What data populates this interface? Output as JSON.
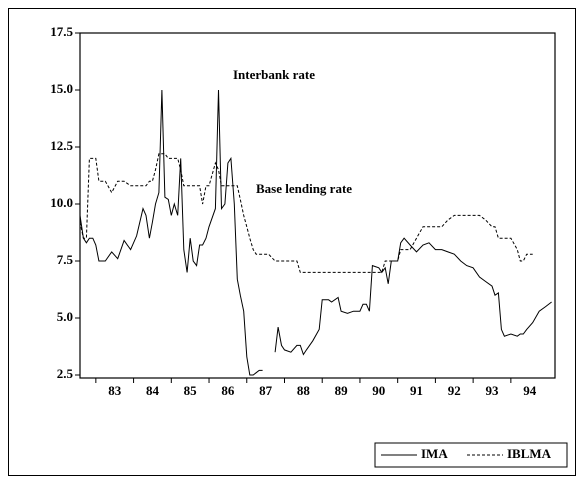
{
  "chart_data": {
    "type": "line",
    "annotations": [
      "Interbank rate",
      "Base lending rate"
    ],
    "x": [
      1982.58,
      1982.67,
      1982.75,
      1982.83,
      1982.92,
      1983.0,
      1983.08,
      1983.25,
      1983.42,
      1983.58,
      1983.75,
      1983.92,
      1984.08,
      1984.25,
      1984.33,
      1984.42,
      1984.5,
      1984.58,
      1984.67,
      1984.75,
      1984.83,
      1984.92,
      1985.0,
      1985.08,
      1985.17,
      1985.25,
      1985.33,
      1985.42,
      1985.5,
      1985.58,
      1985.67,
      1985.75,
      1985.83,
      1985.92,
      1986.0,
      1986.17,
      1986.25,
      1986.33,
      1986.42,
      1986.5,
      1986.58,
      1986.67,
      1986.75,
      1986.83,
      1986.92,
      1987.0,
      1987.08,
      1987.17,
      1987.25,
      1987.33,
      1987.42,
      1987.58,
      1987.75,
      1987.83,
      1987.92,
      1988.0,
      1988.17,
      1988.33,
      1988.42,
      1988.5,
      1988.58,
      1988.75,
      1988.92,
      1989.0,
      1989.17,
      1989.25,
      1989.42,
      1989.5,
      1989.67,
      1989.83,
      1990.0,
      1990.08,
      1990.17,
      1990.25,
      1990.33,
      1990.5,
      1990.58,
      1990.67,
      1990.75,
      1990.83,
      1990.92,
      1991.0,
      1991.08,
      1991.17,
      1991.33,
      1991.5,
      1991.67,
      1991.83,
      1992.0,
      1992.17,
      1992.33,
      1992.5,
      1992.67,
      1992.83,
      1993.0,
      1993.17,
      1993.33,
      1993.5,
      1993.58,
      1993.67,
      1993.75,
      1993.83,
      1994.0,
      1994.17,
      1994.25,
      1994.33,
      1994.42,
      1994.58,
      1994.75,
      1994.92,
      1995.08
    ],
    "series": [
      {
        "name": "IMA",
        "color": "#000000",
        "dash": "solid",
        "values": [
          9.5,
          8.5,
          8.3,
          8.5,
          8.5,
          8.2,
          7.5,
          7.5,
          7.9,
          7.6,
          8.4,
          8.0,
          8.6,
          9.8,
          9.5,
          8.5,
          9.2,
          10.0,
          10.5,
          15.0,
          10.3,
          10.2,
          9.5,
          10.0,
          9.5,
          12.0,
          8.0,
          7.0,
          8.5,
          7.5,
          7.3,
          8.2,
          8.2,
          8.5,
          9.0,
          9.8,
          15.0,
          9.8,
          10.0,
          11.8,
          12.0,
          10.0,
          6.7,
          6.0,
          5.3,
          3.3,
          2.5,
          2.5,
          2.6,
          2.7,
          2.7,
          null,
          3.5,
          4.6,
          3.8,
          3.6,
          3.5,
          3.8,
          3.8,
          3.4,
          3.6,
          4.0,
          4.5,
          5.8,
          5.8,
          5.7,
          5.9,
          5.3,
          5.2,
          5.3,
          5.3,
          5.6,
          5.6,
          5.3,
          7.3,
          7.2,
          7.0,
          7.2,
          6.5,
          7.5,
          7.5,
          7.5,
          8.3,
          8.5,
          8.2,
          7.9,
          8.2,
          8.3,
          8.0,
          8.0,
          7.9,
          7.8,
          7.5,
          7.3,
          7.2,
          6.8,
          6.6,
          6.4,
          6.0,
          6.1,
          4.5,
          4.2,
          4.3,
          4.2,
          4.3,
          4.3,
          4.5,
          4.8,
          5.3,
          5.5,
          5.7
        ]
      },
      {
        "name": "IBLMA",
        "color": "#000000",
        "dash": "dashed",
        "values": [
          9.2,
          8.5,
          8.5,
          12.0,
          12.0,
          12.0,
          11.0,
          11.0,
          10.5,
          11.0,
          11.0,
          10.8,
          10.8,
          10.8,
          10.8,
          11.0,
          11.0,
          11.5,
          12.2,
          12.2,
          12.2,
          12.0,
          12.0,
          12.0,
          12.0,
          11.5,
          10.8,
          10.8,
          10.8,
          10.8,
          10.8,
          10.8,
          10.0,
          10.8,
          10.8,
          11.8,
          11.5,
          10.8,
          10.8,
          10.8,
          10.8,
          10.8,
          10.8,
          10.2,
          9.5,
          9.0,
          8.5,
          8.0,
          7.8,
          7.8,
          7.8,
          7.8,
          7.5,
          7.5,
          7.5,
          7.5,
          7.5,
          7.5,
          7.0,
          7.0,
          7.0,
          7.0,
          7.0,
          7.0,
          7.0,
          7.0,
          7.0,
          7.0,
          7.0,
          7.0,
          7.0,
          7.0,
          7.0,
          7.0,
          7.0,
          7.0,
          7.0,
          7.5,
          7.5,
          7.5,
          7.5,
          7.5,
          8.0,
          8.0,
          8.0,
          8.5,
          9.0,
          9.0,
          9.0,
          9.0,
          9.3,
          9.5,
          9.5,
          9.5,
          9.5,
          9.5,
          9.3,
          9.0,
          9.0,
          8.5,
          8.5,
          8.5,
          8.5,
          8.0,
          7.5,
          7.5,
          7.8,
          7.8,
          null,
          null,
          null
        ]
      }
    ],
    "xlim": [
      1982.58,
      1995.17
    ],
    "xticks": [
      {
        "value": 1983,
        "label": "83"
      },
      {
        "value": 1984,
        "label": "84"
      },
      {
        "value": 1985,
        "label": "85"
      },
      {
        "value": 1986,
        "label": "86"
      },
      {
        "value": 1987,
        "label": "87"
      },
      {
        "value": 1988,
        "label": "88"
      },
      {
        "value": 1989,
        "label": "89"
      },
      {
        "value": 1990,
        "label": "90"
      },
      {
        "value": 1991,
        "label": "91"
      },
      {
        "value": 1992,
        "label": "92"
      },
      {
        "value": 1993,
        "label": "93"
      },
      {
        "value": 1994,
        "label": "94"
      }
    ],
    "ylim": [
      2.5,
      17.5
    ],
    "yticks": [
      2.5,
      {
        "value": 5,
        "label": "5.0"
      },
      7.5,
      {
        "value": 10,
        "label": "10.0"
      },
      12.5,
      {
        "value": 15,
        "label": "15.0"
      },
      17.5
    ],
    "legend": "bottom-right"
  }
}
